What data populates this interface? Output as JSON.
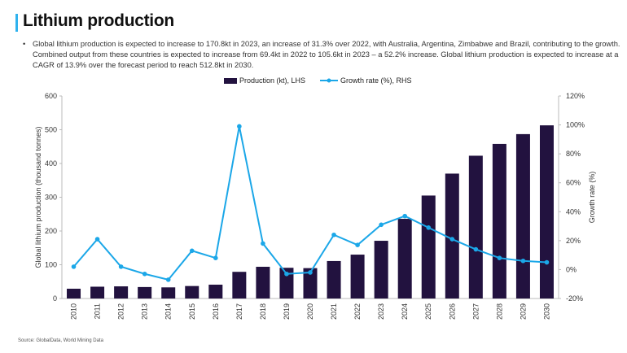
{
  "header": {
    "title": "Lithium production"
  },
  "bullet": "Global lithium production is expected to increase to 170.8kt in 2023, an increase of 31.3% over 2022, with Australia, Argentina, Zimbabwe and Brazil, contributing to the growth. Combined output from these countries is expected to increase from 69.4kt in 2022 to 105.6kt in 2023 – a 52.2% increase. Global lithium production is expected to increase at a CAGR of 13.9% over the forecast period to reach 512.8kt in 2030.",
  "source": "Source: GlobalData, World Mining Data",
  "colors": {
    "accent": "#2fb2ee",
    "bar": "#22123f",
    "line": "#1ba7e8"
  },
  "chart_data": {
    "type": "bar+line",
    "categories": [
      "2010",
      "2011",
      "2012",
      "2013",
      "2014",
      "2015",
      "2016",
      "2017",
      "2018",
      "2019",
      "2020",
      "2021",
      "2022",
      "2023",
      "2024",
      "2025",
      "2026",
      "2027",
      "2028",
      "2029",
      "2030"
    ],
    "series": [
      {
        "name": "Production (kt), LHS",
        "type": "bar",
        "axis": "left",
        "values": [
          29,
          35,
          36,
          34,
          33,
          37,
          41,
          79,
          94,
          91,
          90,
          111,
          130,
          171,
          236,
          305,
          370,
          423,
          458,
          487,
          513
        ]
      },
      {
        "name": "Growth rate (%), RHS",
        "type": "line",
        "axis": "right",
        "values": [
          2,
          21,
          2,
          -3,
          -7,
          13,
          8,
          99,
          18,
          -3,
          -2,
          24,
          17,
          31,
          37,
          29,
          21,
          14,
          8,
          6,
          5
        ]
      }
    ],
    "ylabel": "Global lithium production (thousand tonnes)",
    "y2label": "Growth rate (%)",
    "ylim": [
      0,
      600
    ],
    "yticks": [
      "0",
      "100",
      "200",
      "300",
      "400",
      "500",
      "600"
    ],
    "y2lim": [
      -20,
      120
    ],
    "y2ticks": [
      "-20%",
      "0%",
      "20%",
      "40%",
      "60%",
      "80%",
      "100%",
      "120%"
    ],
    "legend": "top",
    "grid": false
  }
}
